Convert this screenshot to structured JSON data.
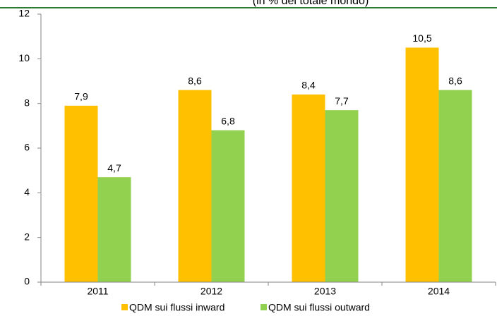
{
  "chart_data": {
    "type": "bar",
    "title": "(in % del totale mondo)",
    "categories": [
      "2011",
      "2012",
      "2013",
      "2014"
    ],
    "series": [
      {
        "name": "QDM sui flussi inward",
        "color": "#FFC000",
        "values": [
          7.9,
          8.6,
          8.4,
          10.5
        ],
        "value_labels": [
          "7,9",
          "8,6",
          "8,4",
          "10,5"
        ]
      },
      {
        "name": "QDM sui flussi outward",
        "color": "#92D050",
        "values": [
          4.7,
          6.8,
          7.7,
          8.6
        ],
        "value_labels": [
          "4,7",
          "6,8",
          "7,7",
          "8,6"
        ]
      }
    ],
    "ylim": [
      0,
      12
    ],
    "yticks": [
      0,
      2,
      4,
      6,
      8,
      10,
      12
    ],
    "grid": false
  }
}
